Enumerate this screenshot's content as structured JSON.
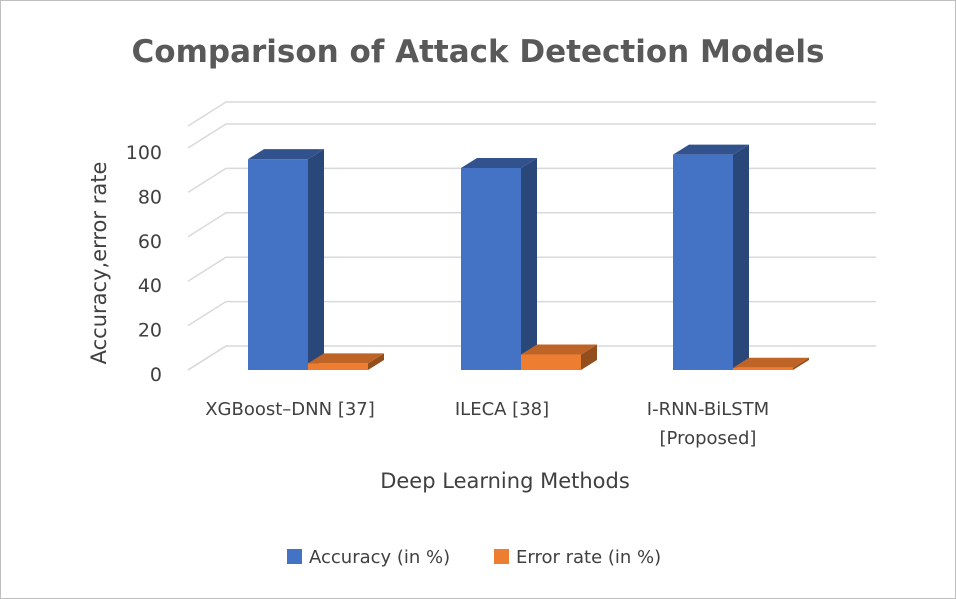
{
  "chart_data": {
    "type": "bar",
    "title": "Comparison of Attack Detection Models",
    "xlabel": "Deep Learning Methods",
    "ylabel": "Accuracy,error rate",
    "categories": [
      "XGBoost–DNN [37]",
      "ILECA [38]",
      "I-RNN-BiLSTM [Proposed]"
    ],
    "category_lines": [
      [
        "XGBoost–DNN [37]"
      ],
      [
        "ILECA [38]"
      ],
      [
        "I-RNN-BiLSTM",
        "[Proposed]"
      ]
    ],
    "series": [
      {
        "name": "Accuracy (in %)",
        "color": "#4472c4",
        "values": [
          95,
          91,
          97
        ]
      },
      {
        "name": "Error rate (in %)",
        "color": "#ed7d31",
        "values": [
          3,
          7,
          1
        ]
      }
    ],
    "y_ticks": [
      "0",
      "20",
      "40",
      "60",
      "80",
      "100"
    ],
    "ylim": [
      0,
      100
    ],
    "grid": true,
    "legend": "bottom",
    "style": "3d-clustered-column"
  }
}
